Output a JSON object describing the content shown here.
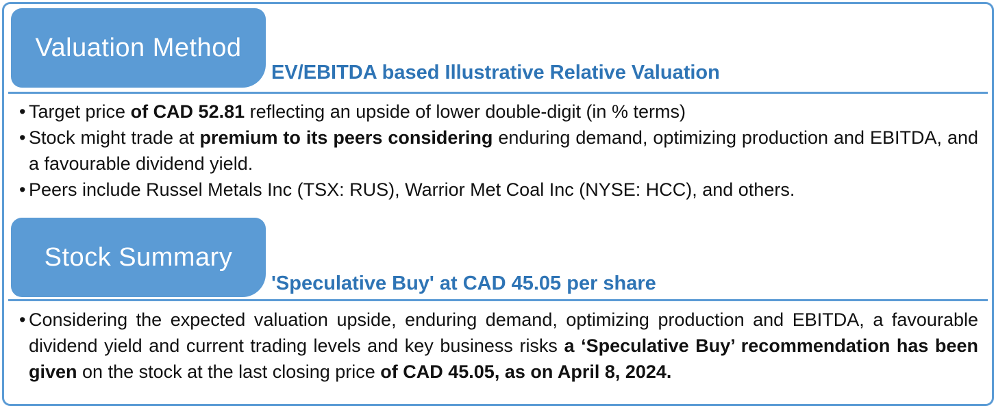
{
  "colors": {
    "accent": "#5B9BD5",
    "heading_text": "#FFFFFF",
    "subtitle_text": "#2E74B5",
    "body_text": "#111111"
  },
  "sections": [
    {
      "title": "Valuation Method",
      "subtitle": "EV/EBITDA based Illustrative Relative Valuation",
      "bullets": [
        [
          {
            "t": "Target price ",
            "b": false
          },
          {
            "t": "of CAD 52.81",
            "b": true
          },
          {
            "t": " reflecting an upside of lower double-digit (in % terms)",
            "b": false
          }
        ],
        [
          {
            "t": "Stock might trade at ",
            "b": false
          },
          {
            "t": "premium to its peers considering",
            "b": true
          },
          {
            "t": " enduring demand, optimizing production and EBITDA, and a favourable dividend yield.",
            "b": false
          }
        ],
        [
          {
            "t": "Peers include Russel Metals Inc (TSX: RUS), Warrior Met Coal Inc (NYSE: HCC), and others.",
            "b": false
          }
        ]
      ]
    },
    {
      "title": "Stock Summary",
      "subtitle": "'Speculative Buy' at CAD 45.05 per share",
      "bullets": [
        [
          {
            "t": "Considering the expected valuation upside, enduring demand, optimizing production and EBITDA, a favourable dividend yield and current trading levels and key business risks ",
            "b": false
          },
          {
            "t": "a ‘Speculative Buy’ recommendation has been given",
            "b": true
          },
          {
            "t": " on the stock at the last closing price ",
            "b": false
          },
          {
            "t": "of CAD 45.05, as on April 8, 2024.",
            "b": true
          }
        ]
      ]
    }
  ]
}
